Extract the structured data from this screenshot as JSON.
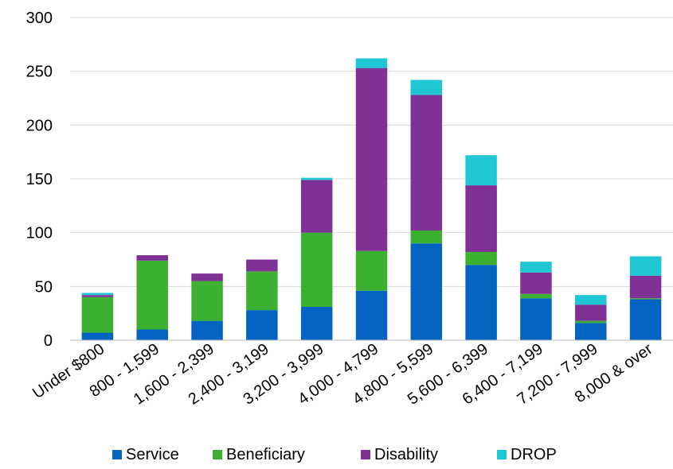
{
  "chart_data": {
    "type": "bar",
    "stacked": true,
    "title": "",
    "xlabel": "",
    "ylabel": "",
    "ylim": [
      0,
      300
    ],
    "yticks": [
      0,
      50,
      100,
      150,
      200,
      250,
      300
    ],
    "grid": true,
    "legend_position": "bottom",
    "categories": [
      "Under $800",
      "800 - 1,599",
      "1,600 - 2,399",
      "2,400 - 3,199",
      "3,200 - 3,999",
      "4,000 - 4,799",
      "4,800 - 5,599",
      "5,600 - 6,399",
      "6,400 - 7,199",
      "7,200 - 7,999",
      "8,000 & over"
    ],
    "series": [
      {
        "name": "Service",
        "color": "#0563C1",
        "values": [
          7,
          10,
          18,
          28,
          31,
          46,
          90,
          70,
          39,
          16,
          38
        ]
      },
      {
        "name": "Beneficiary",
        "color": "#3CB030",
        "values": [
          33,
          64,
          37,
          36,
          69,
          37,
          12,
          12,
          4,
          2,
          1
        ]
      },
      {
        "name": "Disability",
        "color": "#7F3196",
        "values": [
          2,
          5,
          7,
          11,
          49,
          170,
          126,
          62,
          20,
          15,
          21
        ]
      },
      {
        "name": "DROP",
        "color": "#1FC7D4",
        "values": [
          2,
          0,
          0,
          0,
          2,
          9,
          14,
          28,
          10,
          9,
          18
        ]
      }
    ]
  }
}
